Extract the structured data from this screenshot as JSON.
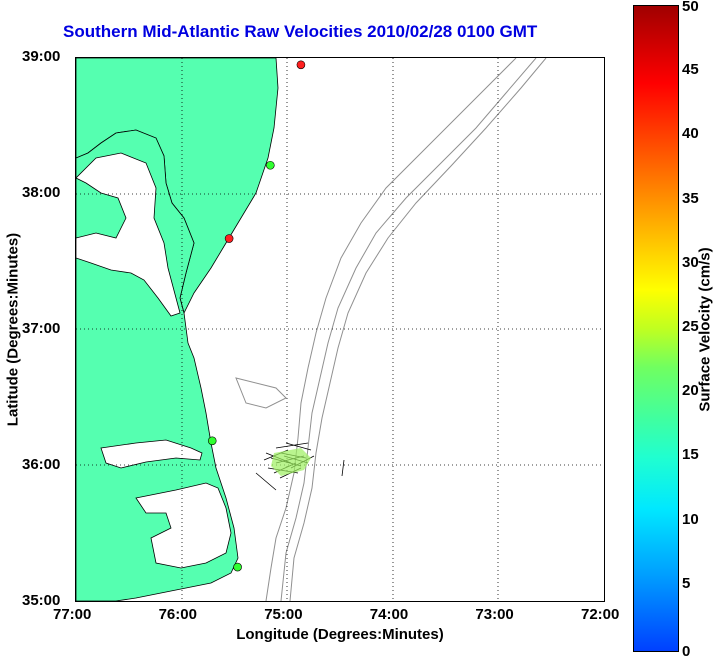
{
  "title": "Southern Mid-Atlantic Raw Velocities 2010/02/28 0100 GMT",
  "xlabel": "Longitude (Degrees:Minutes)",
  "ylabel": "Latitude (Degrees:Minutes)",
  "x_ticks": [
    "77:00",
    "76:00",
    "75:00",
    "74:00",
    "73:00",
    "72:00"
  ],
  "y_ticks": [
    "39:00",
    "38:00",
    "37:00",
    "36:00",
    "35:00"
  ],
  "colorbar": {
    "label": "Surface Velocity (cm/s)",
    "ticks": [
      "50",
      "45",
      "40",
      "35",
      "30",
      "25",
      "20",
      "15",
      "10",
      "5",
      "0"
    ]
  },
  "colors": {
    "land": "#55ffb0",
    "water": "#ffffff",
    "bathymetry": "#909090",
    "title": "#0000e0"
  },
  "grid": "dotted",
  "map_extent": {
    "lon": [
      -77,
      -72
    ],
    "lat": [
      35,
      39
    ]
  },
  "stations": [
    {
      "lon": -74.87,
      "lat": 38.95,
      "color": "#ff2020"
    },
    {
      "lon": -75.16,
      "lat": 38.21,
      "color": "#30ff30"
    },
    {
      "lon": -75.55,
      "lat": 37.67,
      "color": "#ff2020"
    },
    {
      "lon": -75.71,
      "lat": 36.18,
      "color": "#30ff30"
    },
    {
      "lon": -75.47,
      "lat": 35.25,
      "color": "#30ff30"
    }
  ]
}
